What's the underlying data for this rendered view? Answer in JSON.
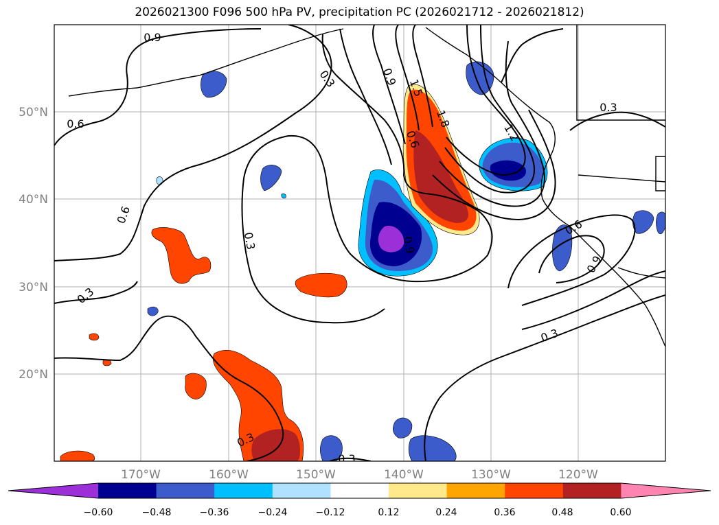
{
  "title": "2026021300 F096 500 hPa PV, precipitation PC (2026021712 - 2026021812)",
  "map": {
    "lat_labels": [
      "50°N",
      "40°N",
      "30°N",
      "20°N"
    ],
    "lon_labels": [
      "170°W",
      "160°W",
      "150°W",
      "140°W",
      "130°W",
      "120°W"
    ],
    "contour_labels": [
      "0.9",
      "0.6",
      "0.6",
      "0.3",
      "0.3",
      "0.3",
      "0.9",
      "1.5",
      "1.8",
      "0.6",
      "1.2",
      "0.3",
      "0.9",
      "0.6",
      "0.9",
      "0.3",
      "0.3",
      "0.3"
    ]
  },
  "colorbar": {
    "ticks": [
      "−0.60",
      "−0.48",
      "−0.36",
      "−0.24",
      "−0.12",
      "0.12",
      "0.24",
      "0.36",
      "0.48",
      "0.60"
    ],
    "colors": [
      "#9b30d9",
      "#000090",
      "#3c5ccc",
      "#00bfff",
      "#b0e2ff",
      "#ffffff",
      "#ffe98a",
      "#ffa500",
      "#ff4500",
      "#b22222",
      "#ff85b0"
    ]
  }
}
